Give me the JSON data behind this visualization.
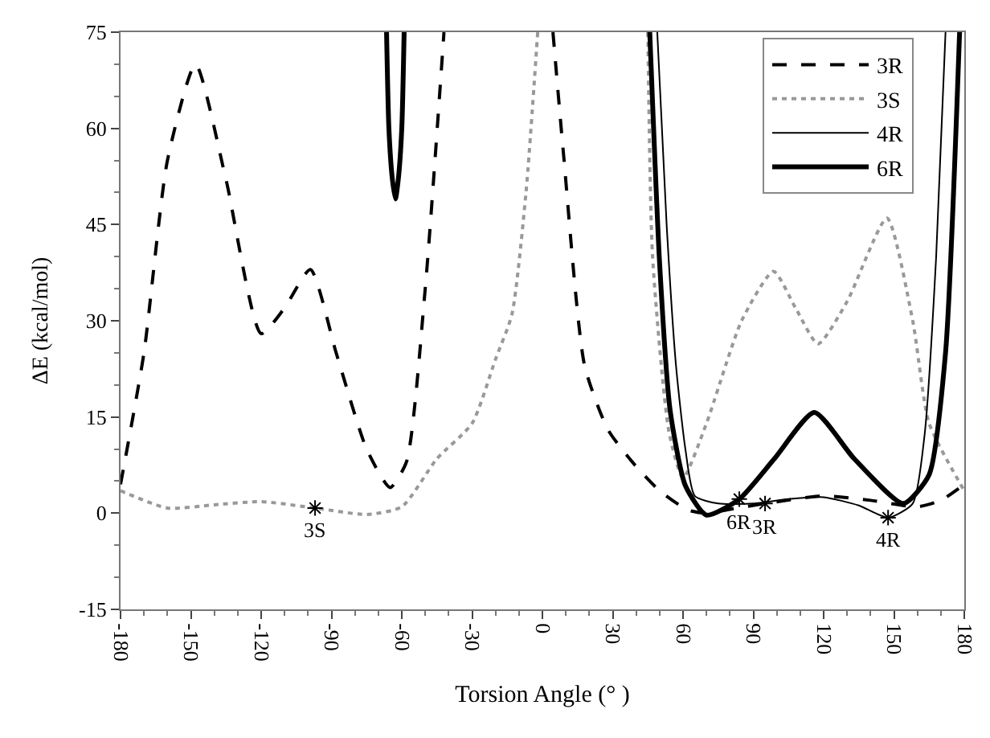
{
  "chart_data": {
    "type": "line",
    "xlabel": "Torsion Angle (° )",
    "ylabel": "ΔE (kcal/mol)",
    "xlim": [
      -180,
      180
    ],
    "xticks": [
      -180,
      -150,
      -120,
      -90,
      -60,
      -30,
      0,
      30,
      60,
      90,
      120,
      150,
      180
    ],
    "ylim": [
      -15,
      75
    ],
    "yticks": [
      -15,
      0,
      15,
      30,
      45,
      60,
      75
    ],
    "legend": "top right",
    "marker": "none",
    "series": [
      {
        "name": "3R",
        "color": "#000000",
        "line_style": "dashed",
        "x": [
          -180,
          -170,
          -160,
          -148,
          -135,
          -120,
          -110,
          -99,
          -88,
          -75,
          -65,
          -58,
          -50,
          -42,
          0,
          4.5,
          9,
          18,
          28,
          39,
          50,
          62,
          70,
          80,
          95,
          120,
          140,
          160,
          170,
          180
        ],
        "values": [
          4.5,
          25,
          55,
          70,
          52,
          28,
          32,
          38,
          25,
          10,
          4,
          8,
          35,
          75,
          null,
          75,
          56,
          23,
          13,
          7.7,
          3.5,
          0.5,
          0,
          0.6,
          1.5,
          2.7,
          2,
          1,
          2,
          4.5
        ]
      },
      {
        "name": "3S",
        "color": "#999999",
        "line_style": "dotted",
        "x": [
          -180,
          -160,
          -140,
          -120,
          -97,
          -75,
          -60,
          -45,
          -30,
          -20,
          -13,
          -7,
          -2,
          0,
          45,
          47,
          54,
          60,
          70,
          85,
          98.6,
          108,
          117.6,
          130,
          147,
          158,
          165,
          180
        ],
        "values": [
          3.5,
          0.8,
          1.3,
          1.8,
          0.8,
          -0.2,
          1,
          8.5,
          14,
          24,
          31,
          50,
          75,
          null,
          75,
          40,
          12.7,
          5.5,
          14,
          30,
          37.7,
          32,
          26.4,
          33,
          46,
          30,
          14,
          3.5
        ]
      },
      {
        "name": "4R",
        "color": "#000000",
        "line_style": "solid",
        "x": [
          49,
          53,
          57,
          61,
          65,
          75,
          90,
          105,
          120,
          135,
          147.5,
          158,
          163,
          168,
          172
        ],
        "values": [
          75,
          45,
          23,
          10,
          2.7,
          1.5,
          1.5,
          2.2,
          2.5,
          1.2,
          -0.7,
          1.5,
          12,
          40,
          75
        ]
      },
      {
        "name": "6R",
        "color": "#000000",
        "line_style": "solid",
        "x": [
          -66.5,
          -65.5,
          -64,
          -62.7,
          -61.5,
          -60,
          -59,
          0,
          45.8,
          50,
          54.5,
          61,
          70,
          84,
          99,
          116,
          133,
          154,
          165,
          172,
          178
        ],
        "values": [
          75,
          60,
          52,
          49,
          52,
          60,
          75,
          null,
          75,
          39,
          16,
          4.3,
          -0.3,
          2.2,
          8.5,
          15.7,
          8.5,
          1.5,
          6,
          25,
          75
        ]
      }
    ],
    "annotations": [
      {
        "text": "3S",
        "x": -97,
        "y": 0.8
      },
      {
        "text": "6R",
        "x": 84,
        "y": 2.2
      },
      {
        "text": "3R",
        "x": 95,
        "y": 1.5
      },
      {
        "text": "4R",
        "x": 147.5,
        "y": -0.7
      }
    ]
  }
}
